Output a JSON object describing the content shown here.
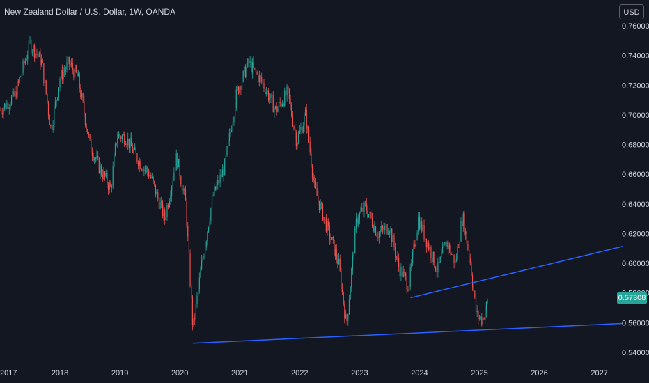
{
  "header": {
    "title": "New Zealand Dollar / U.S. Dollar, 1W, OANDA",
    "currency": "USD"
  },
  "last_price": "0.57308",
  "chart_data": {
    "type": "candlestick",
    "title": "New Zealand Dollar / U.S. Dollar, 1W, OANDA",
    "xlabel": "",
    "ylabel": "",
    "x_ticks": [
      "2017",
      "2018",
      "2019",
      "2020",
      "2021",
      "2022",
      "2023",
      "2024",
      "2025",
      "2026",
      "2027"
    ],
    "y_ticks": [
      "0.76000",
      "0.74000",
      "0.72000",
      "0.70000",
      "0.68000",
      "0.66000",
      "0.64000",
      "0.62000",
      "0.60000",
      "0.58000",
      "0.56000",
      "0.54000"
    ],
    "xlim": [
      2017.0,
      2027.8
    ],
    "ylim": [
      0.536,
      0.766
    ],
    "colors": {
      "up": "#26a69a",
      "down": "#ef5350",
      "trendline": "#2962ff",
      "background": "#131722",
      "text": "#d1d4dc"
    },
    "anchors": [
      [
        2017.0,
        0.703
      ],
      [
        2017.25,
        0.713
      ],
      [
        2017.5,
        0.748
      ],
      [
        2017.7,
        0.735
      ],
      [
        2017.85,
        0.69
      ],
      [
        2018.0,
        0.725
      ],
      [
        2018.15,
        0.735
      ],
      [
        2018.3,
        0.725
      ],
      [
        2018.5,
        0.68
      ],
      [
        2018.65,
        0.665
      ],
      [
        2018.85,
        0.65
      ],
      [
        2018.95,
        0.686
      ],
      [
        2019.1,
        0.685
      ],
      [
        2019.3,
        0.67
      ],
      [
        2019.5,
        0.66
      ],
      [
        2019.75,
        0.63
      ],
      [
        2019.95,
        0.672
      ],
      [
        2020.1,
        0.64
      ],
      [
        2020.22,
        0.555
      ],
      [
        2020.35,
        0.595
      ],
      [
        2020.55,
        0.645
      ],
      [
        2020.75,
        0.665
      ],
      [
        2020.95,
        0.715
      ],
      [
        2021.15,
        0.735
      ],
      [
        2021.4,
        0.72
      ],
      [
        2021.6,
        0.703
      ],
      [
        2021.8,
        0.715
      ],
      [
        2021.95,
        0.682
      ],
      [
        2022.1,
        0.7
      ],
      [
        2022.25,
        0.65
      ],
      [
        2022.45,
        0.625
      ],
      [
        2022.65,
        0.6
      ],
      [
        2022.78,
        0.558
      ],
      [
        2022.95,
        0.63
      ],
      [
        2023.1,
        0.638
      ],
      [
        2023.3,
        0.62
      ],
      [
        2023.5,
        0.625
      ],
      [
        2023.65,
        0.598
      ],
      [
        2023.82,
        0.585
      ],
      [
        2023.98,
        0.63
      ],
      [
        2024.15,
        0.612
      ],
      [
        2024.3,
        0.595
      ],
      [
        2024.45,
        0.615
      ],
      [
        2024.6,
        0.6
      ],
      [
        2024.72,
        0.632
      ],
      [
        2024.85,
        0.6
      ],
      [
        2024.95,
        0.565
      ],
      [
        2025.05,
        0.562
      ],
      [
        2025.13,
        0.573
      ]
    ],
    "trendlines": [
      {
        "name": "",
        "points": [
          [
            2020.22,
            0.5462
          ],
          [
            2027.4,
            0.5595
          ]
        ]
      },
      {
        "name": "",
        "points": [
          [
            2023.85,
            0.5768
          ],
          [
            2027.4,
            0.6115
          ]
        ]
      }
    ],
    "last_value": 0.57308
  }
}
